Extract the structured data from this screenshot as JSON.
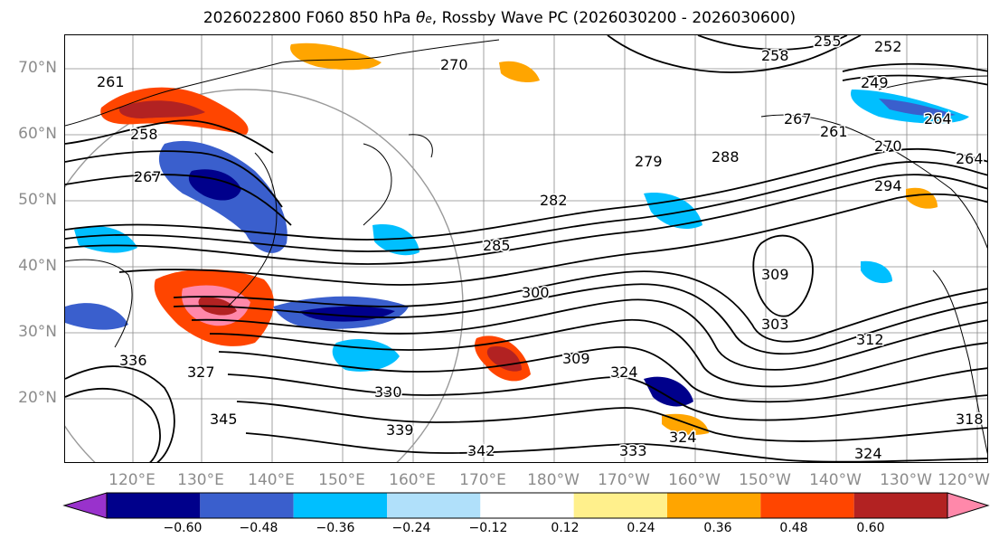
{
  "title": {
    "prefix": "2026022800 F060 850 hPa ",
    "theta": "θ",
    "theta_sub": "e",
    "suffix": ", Rossby Wave PC (2026030200 - 2026030600)"
  },
  "axes": {
    "lat_labels": [
      "70°N",
      "60°N",
      "50°N",
      "40°N",
      "30°N",
      "20°N"
    ],
    "lon_labels": [
      "120°E",
      "130°E",
      "140°E",
      "150°E",
      "160°E",
      "170°E",
      "180°W",
      "170°W",
      "160°W",
      "150°W",
      "140°W",
      "130°W",
      "120°W"
    ]
  },
  "contour_labels": [
    "261",
    "258",
    "267",
    "270",
    "264",
    "255",
    "252",
    "249",
    "258",
    "261",
    "264",
    "267",
    "270",
    "279",
    "288",
    "282",
    "285",
    "300",
    "309",
    "303",
    "312",
    "309",
    "324",
    "330",
    "339",
    "345",
    "342",
    "333",
    "324",
    "324",
    "318",
    "327",
    "336",
    "294"
  ],
  "colorbar": {
    "colors": [
      "#9932cc",
      "#00008b",
      "#3a5fcd",
      "#00bfff",
      "#b0e0fa",
      "#ffffff",
      "#fff08c",
      "#ffa500",
      "#ff4500",
      "#b22222",
      "#ff88aa"
    ],
    "ticks": [
      "−0.60",
      "−0.48",
      "−0.36",
      "−0.24",
      "−0.12",
      "0.12",
      "0.24",
      "0.36",
      "0.48",
      "0.60"
    ]
  },
  "blobs": [
    {
      "color": "#ff4500",
      "desc": "east asia warm"
    },
    {
      "color": "#3a5fcd",
      "desc": "siberia cold"
    }
  ]
}
